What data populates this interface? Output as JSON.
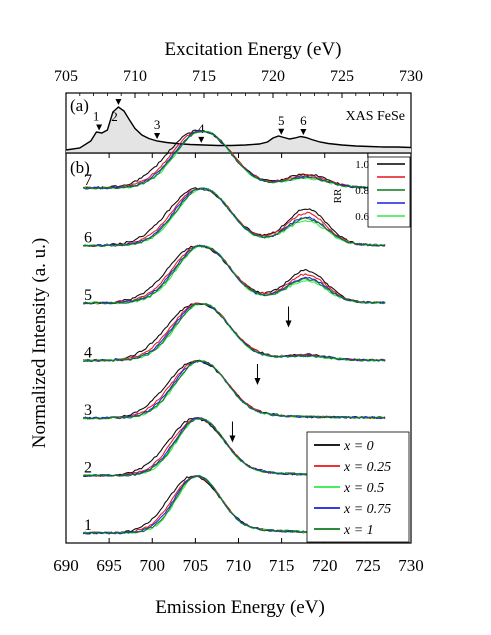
{
  "chart_data": [
    {
      "panel_label": "(a)",
      "type": "area",
      "title": "",
      "xlabel": "Excitation Energy (eV)",
      "xlim": [
        705,
        730
      ],
      "xticks": [
        705,
        710,
        715,
        720,
        725,
        730
      ],
      "sample_label": "XAS FeSe",
      "fill_color": "#e4e4e4",
      "spectrum": {
        "x": [
          705,
          706,
          706.8,
          707.2,
          707.6,
          708.0,
          708.4,
          708.8,
          709.2,
          709.6,
          710.0,
          710.5,
          711.0,
          711.6,
          712.3,
          713,
          714,
          715,
          716,
          717,
          718,
          719,
          719.6,
          720.0,
          720.4,
          720.8,
          721.2,
          721.6,
          722.0,
          722.4,
          722.8,
          723.4,
          724,
          725,
          726,
          727,
          728,
          729,
          730
        ],
        "y": [
          0.02,
          0.06,
          0.2,
          0.38,
          0.36,
          0.42,
          0.78,
          0.88,
          0.8,
          0.62,
          0.45,
          0.32,
          0.25,
          0.2,
          0.17,
          0.15,
          0.13,
          0.12,
          0.11,
          0.11,
          0.12,
          0.14,
          0.18,
          0.26,
          0.3,
          0.27,
          0.24,
          0.26,
          0.29,
          0.27,
          0.23,
          0.18,
          0.15,
          0.12,
          0.1,
          0.09,
          0.08,
          0.08,
          0.07
        ]
      },
      "excitation_markers": [
        {
          "label": "1",
          "x": 707.4
        },
        {
          "label": "2",
          "x": 708.8
        },
        {
          "label": "3",
          "x": 711.6
        },
        {
          "label": "4",
          "x": 714.8
        },
        {
          "label": "5",
          "x": 720.6
        },
        {
          "label": "6",
          "x": 722.2
        }
      ]
    },
    {
      "panel_label": "(b)",
      "type": "line",
      "title": "",
      "xlabel": "Emission Energy (eV)",
      "ylabel": "Normalized Intensity (a. u.)",
      "xlim": [
        690,
        730
      ],
      "xticks": [
        690,
        695,
        700,
        705,
        710,
        715,
        720,
        725,
        730
      ],
      "traces": [
        {
          "label": "1",
          "peak_center": 705.0,
          "peak_width": 2.5,
          "l2_center": 718,
          "l2_ratio": 0.0
        },
        {
          "label": "2",
          "peak_center": 705.2,
          "peak_width": 2.7,
          "l2_center": 718,
          "l2_ratio": 0.0
        },
        {
          "label": "3",
          "peak_center": 705.3,
          "peak_width": 2.9,
          "l2_center": 718,
          "l2_ratio": 0.0
        },
        {
          "label": "4",
          "peak_center": 705.4,
          "peak_width": 3.0,
          "l2_center": 718,
          "l2_ratio": 0.08
        },
        {
          "label": "5",
          "peak_center": 705.5,
          "peak_width": 3.0,
          "l2_center": 717.9,
          "l2_ratio": 0.55
        },
        {
          "label": "6",
          "peak_center": 705.5,
          "peak_width": 3.0,
          "l2_center": 717.9,
          "l2_ratio": 0.62
        },
        {
          "label": "7",
          "peak_center": 705.5,
          "peak_width": 3.1,
          "l2_center": 718.0,
          "l2_ratio": 0.22
        }
      ],
      "series": [
        {
          "name": "x = 0",
          "color": "#000000",
          "l2_scale": 1.0,
          "width_scale": 1.12,
          "shift": -0.3
        },
        {
          "name": "x = 0.25",
          "color": "#e8141a",
          "l2_scale": 0.88,
          "width_scale": 1.05,
          "shift": 0.0
        },
        {
          "name": "x = 0.5",
          "color": "#33e84a",
          "l2_scale": 0.66,
          "width_scale": 0.96,
          "shift": 0.25
        },
        {
          "name": "x = 0.75",
          "color": "#1a1ee0",
          "l2_scale": 0.76,
          "width_scale": 1.0,
          "shift": 0.1
        },
        {
          "name": "x = 1",
          "color": "#0f7a1d",
          "l2_scale": 0.72,
          "width_scale": 0.98,
          "shift": 0.2
        }
      ],
      "arrows": [
        {
          "trace": "2",
          "x": 709.3
        },
        {
          "trace": "3",
          "x": 712.2
        },
        {
          "trace": "4",
          "x": 715.8
        }
      ],
      "rr_legend": {
        "title": "RR",
        "entries": [
          {
            "label": "1.0",
            "color": "#000000"
          },
          {
            "label": "",
            "color": "#e8141a"
          },
          {
            "label": "0.8",
            "color": "#0f7a1d"
          },
          {
            "label": "",
            "color": "#1a1ee0"
          },
          {
            "label": "0.6",
            "color": "#33e84a"
          }
        ]
      }
    }
  ]
}
